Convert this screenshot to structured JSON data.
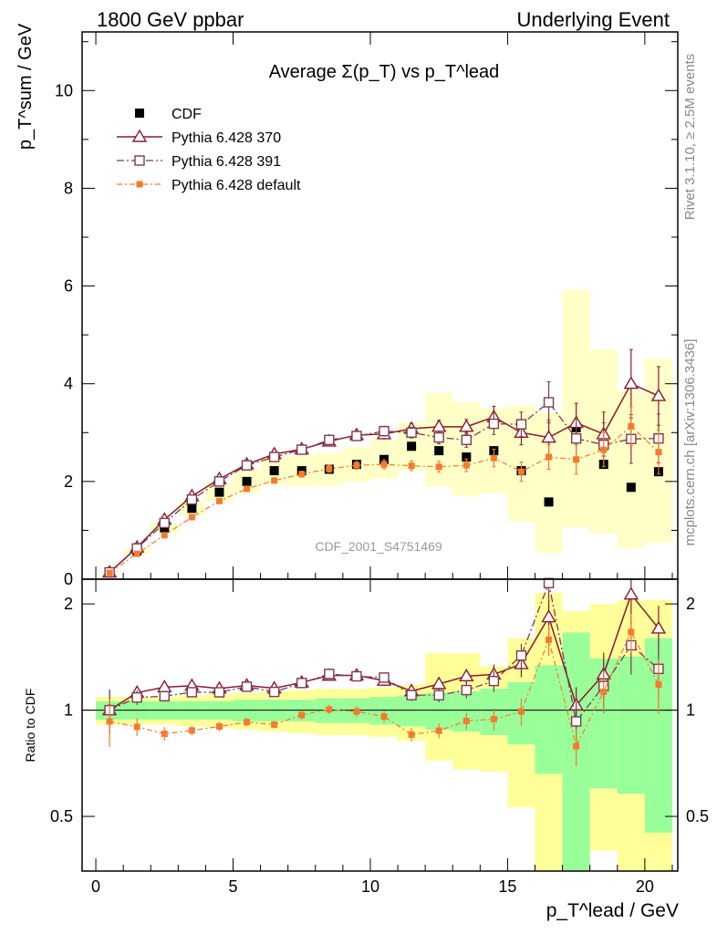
{
  "header": {
    "left": "1800 GeV ppbar",
    "right": "Underlying Event"
  },
  "side": {
    "rivet": "Rivet 3.1.10, ≥ 2.5M events",
    "mcplots": "mcplots.cern.ch [arXiv:1306.3436]"
  },
  "chart_data": {
    "type": "scatter",
    "title": "Average Σ(p_T) vs p_T^lead",
    "watermark": "CDF_2001_S4751469",
    "ylabel": "p_T^sum / GeV",
    "xlabel": "p_T^lead / GeV",
    "ratio_ylabel": "Ratio to CDF",
    "xlim": [
      -0.5,
      21.2
    ],
    "ylim": [
      0,
      11.2
    ],
    "ratio_ylim": [
      0.35,
      2.35
    ],
    "x_ticks": [
      0,
      5,
      10,
      15,
      20
    ],
    "y_ticks": [
      0,
      2,
      4,
      6,
      8,
      10
    ],
    "ratio_ticks": [
      0.5,
      1,
      2
    ],
    "legend_position": "top-left",
    "x": [
      0.5,
      1.5,
      2.5,
      3.5,
      4.5,
      5.5,
      6.5,
      7.5,
      8.5,
      9.5,
      10.5,
      11.5,
      12.5,
      13.5,
      14.5,
      15.5,
      16.5,
      17.5,
      18.5,
      19.5,
      20.5
    ],
    "series": [
      {
        "name": "CDF",
        "color": "#000000",
        "values": [
          0.14,
          0.58,
          1.05,
          1.45,
          1.78,
          2.0,
          2.22,
          2.22,
          2.25,
          2.35,
          2.45,
          2.72,
          2.63,
          2.5,
          2.63,
          2.22,
          1.58,
          3.1,
          2.35,
          1.88,
          2.2
        ]
      },
      {
        "name": "Pythia 6.428 370",
        "color": "#8B1A2B",
        "values": [
          0.14,
          0.65,
          1.22,
          1.7,
          2.05,
          2.35,
          2.56,
          2.66,
          2.82,
          2.95,
          2.97,
          3.08,
          3.12,
          3.12,
          3.32,
          3.0,
          2.9,
          3.2,
          2.97,
          4.0,
          3.75
        ],
        "errors": [
          0.02,
          0.03,
          0.04,
          0.05,
          0.05,
          0.06,
          0.06,
          0.07,
          0.08,
          0.09,
          0.1,
          0.11,
          0.13,
          0.15,
          0.22,
          0.25,
          0.35,
          0.4,
          0.45,
          0.7,
          0.6
        ]
      },
      {
        "name": "Pythia 6.428 391",
        "color": "#7A3B55",
        "values": [
          0.14,
          0.63,
          1.15,
          1.63,
          2.0,
          2.33,
          2.5,
          2.65,
          2.85,
          2.93,
          3.03,
          3.0,
          2.9,
          2.85,
          3.18,
          3.17,
          3.62,
          2.88,
          2.75,
          2.87,
          2.88
        ],
        "errors": [
          0.02,
          0.03,
          0.04,
          0.05,
          0.05,
          0.06,
          0.06,
          0.07,
          0.08,
          0.09,
          0.1,
          0.11,
          0.13,
          0.15,
          0.22,
          0.25,
          0.42,
          0.4,
          0.45,
          0.5,
          0.5
        ]
      },
      {
        "name": "Pythia 6.428 default",
        "color": "#F47A30",
        "values": [
          0.13,
          0.52,
          0.9,
          1.27,
          1.6,
          1.85,
          2.02,
          2.15,
          2.26,
          2.33,
          2.35,
          2.32,
          2.3,
          2.33,
          2.48,
          2.2,
          2.5,
          2.45,
          2.65,
          3.13,
          2.6
        ],
        "errors": [
          0.02,
          0.03,
          0.04,
          0.04,
          0.05,
          0.05,
          0.05,
          0.06,
          0.07,
          0.08,
          0.09,
          0.1,
          0.11,
          0.13,
          0.18,
          0.2,
          0.25,
          0.3,
          0.35,
          0.4,
          0.45
        ]
      }
    ],
    "ratio_bands": {
      "green": [
        [
          0.94,
          1.06
        ],
        [
          0.94,
          1.06
        ],
        [
          0.94,
          1.06
        ],
        [
          0.94,
          1.06
        ],
        [
          0.94,
          1.06
        ],
        [
          0.93,
          1.07
        ],
        [
          0.93,
          1.07
        ],
        [
          0.93,
          1.07
        ],
        [
          0.92,
          1.08
        ],
        [
          0.92,
          1.08
        ],
        [
          0.91,
          1.09
        ],
        [
          0.9,
          1.1
        ],
        [
          0.88,
          1.12
        ],
        [
          0.87,
          1.13
        ],
        [
          0.85,
          1.15
        ],
        [
          0.8,
          1.2
        ],
        [
          0.66,
          1.34
        ],
        [
          0.34,
          1.66
        ],
        [
          0.6,
          1.4
        ],
        [
          0.58,
          1.42
        ],
        [
          0.45,
          1.6
        ]
      ],
      "yellow": [
        [
          0.91,
          1.09
        ],
        [
          0.91,
          1.09
        ],
        [
          0.91,
          1.09
        ],
        [
          0.9,
          1.1
        ],
        [
          0.89,
          1.11
        ],
        [
          0.88,
          1.12
        ],
        [
          0.87,
          1.13
        ],
        [
          0.86,
          1.14
        ],
        [
          0.85,
          1.15
        ],
        [
          0.85,
          1.15
        ],
        [
          0.84,
          1.16
        ],
        [
          0.82,
          1.18
        ],
        [
          0.72,
          1.45
        ],
        [
          0.68,
          1.45
        ],
        [
          0.67,
          1.33
        ],
        [
          0.53,
          1.6
        ],
        [
          0.34,
          2.15
        ],
        [
          0.34,
          1.91
        ],
        [
          0.4,
          2.0
        ],
        [
          0.34,
          2.05
        ],
        [
          0.34,
          2.05
        ]
      ]
    }
  }
}
